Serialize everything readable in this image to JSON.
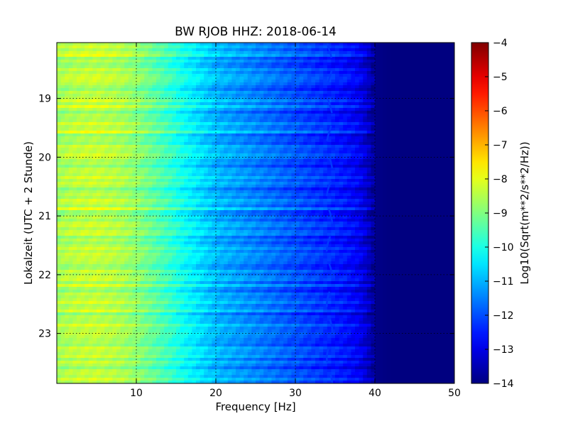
{
  "chart_data": {
    "type": "heatmap",
    "title": "BW RJOB HHZ: 2018-06-14",
    "xlabel": "Frequency [Hz]",
    "ylabel": "Lokalzeit (UTC + 2 Stunde)",
    "xlim": [
      0,
      50
    ],
    "ylim": [
      18.05,
      23.85
    ],
    "x_ticks": [
      10,
      20,
      30,
      40,
      50
    ],
    "y_ticks": [
      19,
      20,
      21,
      22,
      23
    ],
    "x_tick_labels": [
      "10",
      "20",
      "30",
      "40",
      "50"
    ],
    "y_tick_labels": [
      "19",
      "20",
      "21",
      "22",
      "23"
    ],
    "grid": true,
    "colormap": "jet",
    "colorbar": {
      "label": "Log10(Sqrt(m**2/s**2/Hz))",
      "range": [
        -14,
        -4
      ],
      "ticks": [
        -4,
        -5,
        -6,
        -7,
        -8,
        -9,
        -10,
        -11,
        -12,
        -13,
        -14
      ],
      "tick_labels": [
        "−4",
        "−5",
        "−6",
        "−7",
        "−8",
        "−9",
        "−10",
        "−11",
        "−12",
        "−13",
        "−14"
      ]
    },
    "spectral_profile": {
      "frequency": [
        0,
        2,
        5,
        8,
        10,
        12,
        14,
        16,
        18,
        20,
        22,
        25,
        28,
        30,
        33,
        36,
        38,
        39,
        40,
        42,
        45,
        50
      ],
      "level": [
        -8.7,
        -8.5,
        -8.4,
        -8.6,
        -8.9,
        -9.3,
        -9.7,
        -10.2,
        -10.6,
        -11.0,
        -11.2,
        -11.5,
        -11.8,
        -12.0,
        -12.3,
        -12.6,
        -12.9,
        -13.3,
        -13.9,
        -14.0,
        -14.0,
        -14.0
      ]
    },
    "tonal_line": {
      "frequency": 34.3,
      "level": -12.2
    }
  }
}
